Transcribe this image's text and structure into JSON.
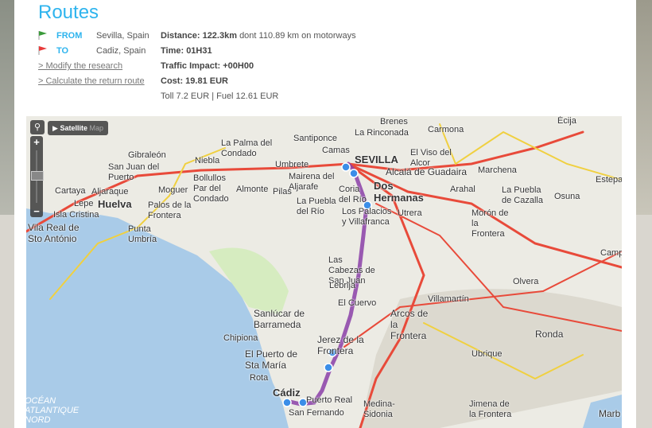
{
  "header": {
    "title": "Routes"
  },
  "route": {
    "from_label": "FROM",
    "from_value": "Sevilla, Spain",
    "to_label": "TO",
    "to_value": "Cadiz, Spain",
    "modify_link": "> Modify the research",
    "return_link": "> Calculate the return route",
    "distance_label": "Distance: 122.3km",
    "distance_detail": "dont 110.89 km on motorways",
    "time": "Time: 01H31",
    "traffic": "Traffic Impact: +00H00",
    "cost": "Cost: 19.81 EUR",
    "cost_detail": "Toll 7.2 EUR | Fuel 12.61 EUR"
  },
  "map": {
    "controls": {
      "search_icon": "magnifier-icon",
      "play_icon": "play-icon",
      "satellite": "Satellite",
      "map": "Map",
      "zoom_in": "+",
      "zoom_out": "−"
    },
    "colors": {
      "route": "#8b3fa8",
      "marker": "#3b8ee8",
      "sea": "#a9cbe8",
      "from_flag": "#3a9a3a",
      "to_flag": "#e83a3a",
      "accent": "#2eb4ee"
    },
    "cities": [
      {
        "name": "SEVILLA",
        "big": true
      },
      {
        "name": "Huelva",
        "big": true
      },
      {
        "name": "Cádiz",
        "big": true
      },
      {
        "name": "Dos Hermanas",
        "big": true
      },
      {
        "name": "Brenes"
      },
      {
        "name": "La Rinconada"
      },
      {
        "name": "Carmona"
      },
      {
        "name": "Écija"
      },
      {
        "name": "Gibraleón"
      },
      {
        "name": "San Juan del Puerto"
      },
      {
        "name": "La Palma del Condado"
      },
      {
        "name": "Santiponce"
      },
      {
        "name": "Camas"
      },
      {
        "name": "El Viso del Alcor"
      },
      {
        "name": "Alcalá de Guadaira"
      },
      {
        "name": "Marchena"
      },
      {
        "name": "Niebla"
      },
      {
        "name": "Umbrete"
      },
      {
        "name": "Mairena del Aljarafe"
      },
      {
        "name": "Cartaya"
      },
      {
        "name": "Aljaraque"
      },
      {
        "name": "Moguer"
      },
      {
        "name": "Bollullos Par del Condado"
      },
      {
        "name": "Almonte"
      },
      {
        "name": "Pilas"
      },
      {
        "name": "Coria del Río"
      },
      {
        "name": "La Puebla del Río"
      },
      {
        "name": "Arahal"
      },
      {
        "name": "La Puebla de Cazalla"
      },
      {
        "name": "Osuna"
      },
      {
        "name": "Estepa"
      },
      {
        "name": "Lepe"
      },
      {
        "name": "Isla Cristina"
      },
      {
        "name": "Palos de la Frontera"
      },
      {
        "name": "Punta Umbría"
      },
      {
        "name": "Vila Real de Sto António"
      },
      {
        "name": "Los Palacios y Villafranca"
      },
      {
        "name": "Utrera"
      },
      {
        "name": "Morón de la Frontera"
      },
      {
        "name": "Campi"
      },
      {
        "name": "Las Cabezas de San Juan"
      },
      {
        "name": "Lebrija"
      },
      {
        "name": "Olvera"
      },
      {
        "name": "El Cuervo"
      },
      {
        "name": "Sanlúcar de Barrameda"
      },
      {
        "name": "Arcos de la Frontera"
      },
      {
        "name": "Villamartín"
      },
      {
        "name": "Chipiona"
      },
      {
        "name": "Ronda"
      },
      {
        "name": "Jerez de la Frontera"
      },
      {
        "name": "El Puerto de Sta María"
      },
      {
        "name": "Rota"
      },
      {
        "name": "Ubrique"
      },
      {
        "name": "Puerto Real"
      },
      {
        "name": "San Fernando"
      },
      {
        "name": "Medina-Sidonia"
      },
      {
        "name": "Jimena de la Frontera"
      },
      {
        "name": "Marb"
      }
    ],
    "sea_label": "OCÉAN ATLANTIQUE NORD"
  }
}
